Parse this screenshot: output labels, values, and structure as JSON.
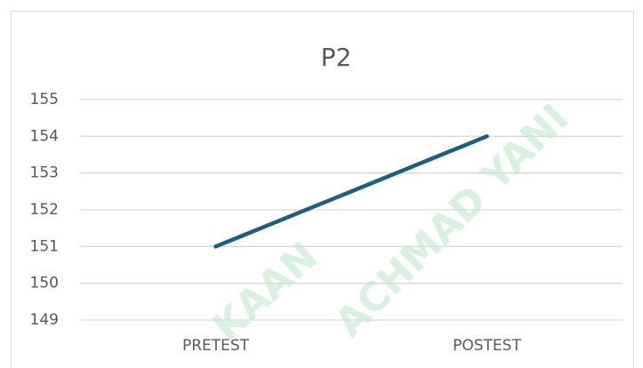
{
  "chart_data": {
    "type": "line",
    "title": "P2",
    "categories": [
      "PRETEST",
      "POSTEST"
    ],
    "values": [
      151,
      154
    ],
    "color": "#1e5f7c",
    "ylim": [
      149,
      155
    ],
    "yticks": [
      149,
      150,
      151,
      152,
      153,
      154,
      155
    ],
    "grid": true,
    "annotations": [
      "KAAN",
      "ACHMAD YANI"
    ]
  }
}
